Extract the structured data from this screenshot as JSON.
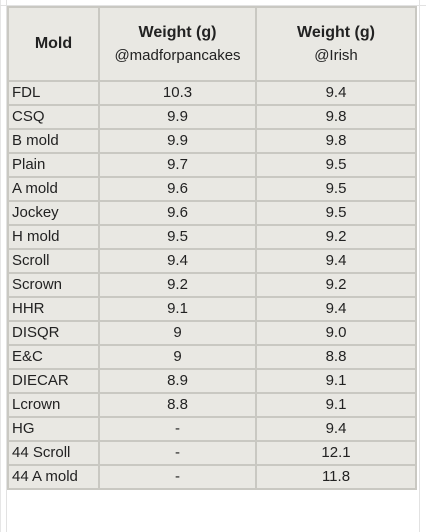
{
  "table": {
    "headers": {
      "mold": "Mold",
      "mad_title": "Weight (g)",
      "mad_sub": "@madforpancakes",
      "irish_title": "Weight (g)",
      "irish_sub": "@Irish"
    },
    "rows": [
      {
        "mold": "FDL",
        "mad": "10.3",
        "irish": "9.4"
      },
      {
        "mold": "CSQ",
        "mad": "9.9",
        "irish": "9.8"
      },
      {
        "mold": "B mold",
        "mad": "9.9",
        "irish": "9.8"
      },
      {
        "mold": "Plain",
        "mad": "9.7",
        "irish": "9.5"
      },
      {
        "mold": "A mold",
        "mad": "9.6",
        "irish": "9.5"
      },
      {
        "mold": "Jockey",
        "mad": "9.6",
        "irish": "9.5"
      },
      {
        "mold": "H mold",
        "mad": "9.5",
        "irish": "9.2"
      },
      {
        "mold": "Scroll",
        "mad": "9.4",
        "irish": "9.4"
      },
      {
        "mold": "Scrown",
        "mad": "9.2",
        "irish": "9.2"
      },
      {
        "mold": "HHR",
        "mad": "9.1",
        "irish": "9.4"
      },
      {
        "mold": "DISQR",
        "mad": "9",
        "irish": "9.0"
      },
      {
        "mold": "E&C",
        "mad": "9",
        "irish": "8.8"
      },
      {
        "mold": "DIECAR",
        "mad": "8.9",
        "irish": "9.1"
      },
      {
        "mold": "Lcrown",
        "mad": "8.8",
        "irish": "9.1"
      },
      {
        "mold": "HG",
        "mad": "-",
        "irish": "9.4"
      },
      {
        "mold": "44 Scroll",
        "mad": "-",
        "irish": "12.1"
      },
      {
        "mold": "44 A mold",
        "mad": "-",
        "irish": "11.8"
      }
    ]
  }
}
